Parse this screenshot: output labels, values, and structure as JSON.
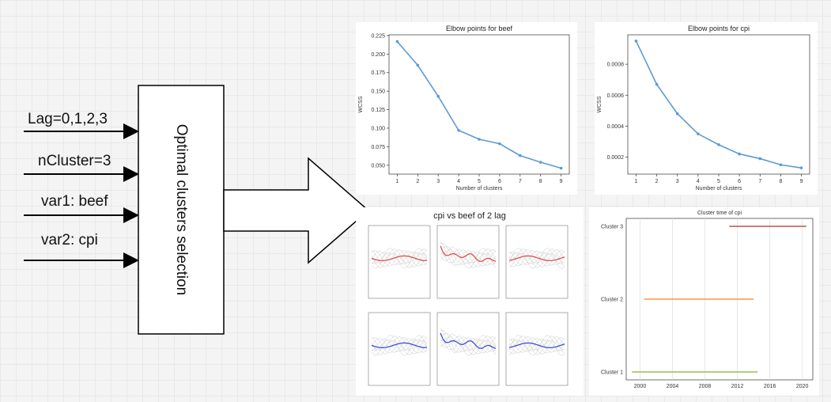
{
  "inputs": [
    {
      "label": "Lag=0,1,2,3"
    },
    {
      "label": "nCluster=3"
    },
    {
      "label": "var1: beef"
    },
    {
      "label": "var2: cpi"
    }
  ],
  "process": {
    "label": "Optimal clusters selection"
  },
  "charts": [
    {
      "type": "line",
      "title": "Elbow points for beef",
      "x_label": "Number of clusters",
      "y_label": "WCSS",
      "color": "#5b9bd5",
      "x": [
        1,
        2,
        3,
        4,
        5,
        6,
        7,
        8,
        9
      ],
      "values": [
        0.217,
        0.185,
        0.143,
        0.097,
        0.085,
        0.079,
        0.063,
        0.054,
        0.046
      ],
      "xlim": [
        0.6,
        9.4
      ],
      "ylim": [
        0.038,
        0.226
      ],
      "xticks": [
        1,
        2,
        3,
        4,
        5,
        6,
        7,
        8,
        9
      ],
      "yticks": [
        {
          "value": 0.05,
          "label": "0.050"
        },
        {
          "value": 0.075,
          "label": "0.075"
        },
        {
          "value": 0.1,
          "label": "0.100"
        },
        {
          "value": 0.125,
          "label": "0.125"
        },
        {
          "value": 0.15,
          "label": "0.150"
        },
        {
          "value": 0.175,
          "label": "0.175"
        },
        {
          "value": 0.2,
          "label": "0.200"
        },
        {
          "value": 0.225,
          "label": "0.225"
        }
      ]
    },
    {
      "type": "line",
      "title": "Elbow points for cpi",
      "x_label": "Number of clusters",
      "y_label": "WCSS",
      "color": "#5b9bd5",
      "x": [
        1,
        2,
        3,
        4,
        5,
        6,
        7,
        8,
        9
      ],
      "values": [
        0.00095,
        0.00067,
        0.00048,
        0.00035,
        0.00028,
        0.00022,
        0.00019,
        0.00015,
        0.00013
      ],
      "xlim": [
        0.6,
        9.4
      ],
      "ylim": [
        9e-05,
        0.00099
      ],
      "xticks": [
        1,
        2,
        3,
        4,
        5,
        6,
        7,
        8,
        9
      ],
      "yticks": [
        0.0002,
        0.0004,
        0.0006,
        0.0008
      ]
    },
    {
      "type": "small-multiples",
      "title": "cpi vs beef of 2 lag"
    },
    {
      "type": "timeline",
      "title": "Cluster time of cpi",
      "categories": [
        "Cluster 1",
        "Cluster 2",
        "Cluster 3"
      ],
      "colors": [
        "#9bbb59",
        "#f79646",
        "#c0504d"
      ],
      "segments": [
        [
          1999,
          2014.5
        ],
        [
          2000.5,
          2014
        ],
        [
          2011,
          2020.5
        ]
      ],
      "xlim": [
        1998.3,
        2021.3
      ],
      "xticks": [
        2000,
        2004,
        2008,
        2012,
        2016,
        2020
      ]
    }
  ]
}
